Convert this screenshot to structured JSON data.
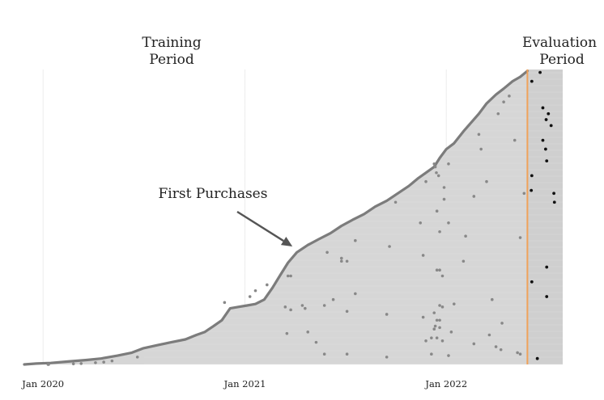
{
  "chart_data": {
    "type": "scatter",
    "title": "",
    "xlabel": "",
    "ylabel": "",
    "x_axis": {
      "type": "date",
      "range": [
        "2019-11-25",
        "2022-07-31"
      ],
      "ticks": [
        "2020-01-01",
        "2021-01-01",
        "2022-01-01"
      ],
      "tick_labels": [
        "Jan 2020",
        "Jan 2021",
        "Jan 2022"
      ]
    },
    "y_axis": {
      "visible": false,
      "range": [
        0,
        100
      ]
    },
    "grid": true,
    "period_labels": {
      "training": [
        "Training",
        "Period"
      ],
      "evaluation": [
        "Evaluation",
        "Period"
      ]
    },
    "evaluation_start": "2022-05-28",
    "annotation": {
      "text": "First Purchases",
      "points_to": [
        "2021-03-28",
        40
      ]
    },
    "first_purchases_curve": {
      "x": [
        "2019-11-28",
        "2019-12-20",
        "2020-01-15",
        "2020-02-15",
        "2020-03-20",
        "2020-04-15",
        "2020-05-15",
        "2020-06-10",
        "2020-07-01",
        "2020-07-25",
        "2020-08-20",
        "2020-09-15",
        "2020-10-05",
        "2020-10-20",
        "2020-11-05",
        "2020-11-20",
        "2020-12-05",
        "2020-12-20",
        "2021-01-05",
        "2021-01-20",
        "2021-02-05",
        "2021-02-20",
        "2021-03-05",
        "2021-03-20",
        "2021-04-05",
        "2021-04-25",
        "2021-05-15",
        "2021-06-05",
        "2021-06-25",
        "2021-07-15",
        "2021-08-05",
        "2021-08-25",
        "2021-09-15",
        "2021-10-05",
        "2021-10-25",
        "2021-11-10",
        "2021-11-25",
        "2021-12-10",
        "2021-12-20",
        "2022-01-01",
        "2022-01-15",
        "2022-02-01",
        "2022-02-15",
        "2022-03-01",
        "2022-03-15",
        "2022-04-01",
        "2022-04-15",
        "2022-05-01",
        "2022-05-15",
        "2022-05-28"
      ],
      "y": [
        0,
        0.3,
        0.5,
        1.0,
        1.5,
        2.0,
        3.0,
        4.0,
        5.5,
        6.5,
        7.5,
        8.5,
        10.0,
        11.0,
        13.0,
        15.0,
        19.0,
        19.5,
        20.0,
        20.5,
        22.0,
        26.0,
        30.0,
        34.5,
        38.0,
        40.5,
        42.5,
        44.5,
        47.0,
        49.0,
        51.0,
        53.5,
        55.5,
        58.0,
        60.5,
        63.0,
        65.0,
        67.0,
        70.0,
        73.0,
        75.0,
        79.0,
        82.0,
        85.0,
        88.5,
        91.5,
        93.5,
        96.0,
        97.5,
        99.5
      ]
    },
    "repeat_purchases_training": {
      "x": [
        "2020-01-10",
        "2020-01-11",
        "2020-02-25",
        "2020-03-10",
        "2020-04-05",
        "2020-04-20",
        "2020-05-05",
        "2020-06-20",
        "2021-05-25",
        "2021-03-18",
        "2021-03-25",
        "2021-03-15",
        "2021-04-15",
        "2021-05-10",
        "2021-05-25",
        "2021-06-10",
        "2021-06-25",
        "2021-07-05",
        "2021-07-05",
        "2021-07-20",
        "2021-09-15",
        "2021-11-20",
        "2021-11-25",
        "2021-12-05",
        "2021-12-15",
        "2021-12-20",
        "2021-12-10",
        "2021-12-20",
        "2021-12-25",
        "2022-01-05",
        "2022-01-10",
        "2022-01-15",
        "2022-02-01",
        "2022-02-05",
        "2022-02-20",
        "2022-03-01",
        "2022-03-05",
        "2022-03-15",
        "2022-03-25",
        "2022-04-05",
        "2022-04-15",
        "2022-04-25",
        "2022-05-05",
        "2022-05-15",
        "2022-05-22",
        "2021-12-18",
        "2021-12-28",
        "2021-12-12",
        "2021-12-14",
        "2022-01-05",
        "2021-12-20",
        "2021-12-20",
        "2021-12-15",
        "2021-12-25",
        "2022-01-05",
        "2021-12-15",
        "2021-12-15",
        "2021-12-28",
        "2021-11-25",
        "2021-12-10",
        "2021-10-01",
        "2021-11-15",
        "2021-09-20",
        "2021-07-20",
        "2021-06-25",
        "2021-05-30",
        "2021-03-20",
        "2021-03-25",
        "2021-02-10",
        "2021-01-20",
        "2021-01-10",
        "2020-11-25",
        "2021-04-20",
        "2021-07-05",
        "2021-09-15",
        "2021-11-20",
        "2021-12-20",
        "2022-04-12",
        "2021-12-12",
        "2021-12-10",
        "2021-04-25",
        "2022-03-20",
        "2021-12-05",
        "2021-12-25",
        "2022-02-20",
        "2022-04-01",
        "2022-04-10",
        "2022-05-10",
        "2022-05-15"
      ],
      "y": [
        0,
        0,
        0.2,
        0.3,
        0.6,
        0.8,
        1.2,
        2.5,
        3.5,
        10.5,
        18.5,
        19.5,
        20,
        7.5,
        20,
        22,
        36,
        35,
        3.5,
        24,
        2.5,
        37,
        8,
        3.5,
        9,
        12.5,
        17.5,
        20,
        19.5,
        3,
        11,
        20.5,
        35,
        43.5,
        57,
        78,
        73,
        62,
        22,
        85,
        89,
        91,
        76,
        43,
        58,
        64,
        56,
        67,
        65,
        48,
        32,
        45,
        32,
        30,
        68,
        15,
        52,
        60,
        62,
        68,
        55,
        48,
        40,
        42,
        35,
        38,
        30,
        30,
        27,
        25,
        23,
        21,
        19,
        18,
        17,
        16,
        15,
        14,
        13,
        12,
        11,
        10,
        9,
        8,
        7,
        6,
        5,
        4,
        3.5
      ]
    },
    "repeat_purchases_evaluation": {
      "x": [
        "2022-06-05",
        "2022-06-20",
        "2022-06-25",
        "2022-07-01",
        "2022-07-05",
        "2022-07-10",
        "2022-06-25",
        "2022-06-30",
        "2022-07-02",
        "2022-06-05",
        "2022-06-04",
        "2022-07-15",
        "2022-07-16",
        "2022-07-02",
        "2022-06-05",
        "2022-07-02",
        "2022-06-15"
      ],
      "y": [
        96,
        99,
        87,
        83,
        85,
        81,
        76,
        73,
        69,
        64,
        59,
        58,
        55,
        33,
        28,
        23,
        2
      ]
    }
  }
}
